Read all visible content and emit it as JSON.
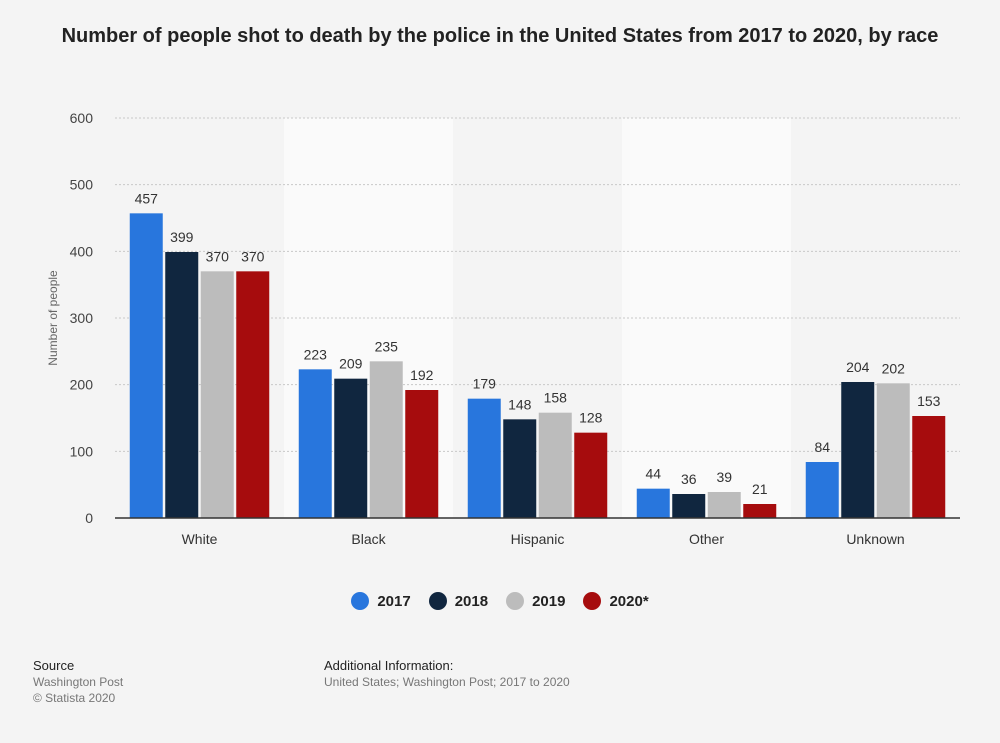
{
  "title": "Number of people shot to death by the police in the United States from 2017 to 2020, by race",
  "colors": {
    "2017": "#2876dd",
    "2018": "#10263f",
    "2019": "#bcbcbc",
    "2020": "#a60c0d"
  },
  "chart_data": {
    "type": "bar",
    "title": "Number of people shot to death by the police in the United States from 2017 to 2020, by race",
    "xlabel": "",
    "ylabel": "Number of people",
    "ylim": [
      0,
      600
    ],
    "yticks": [
      0,
      100,
      200,
      300,
      400,
      500,
      600
    ],
    "grid": true,
    "legend_position": "bottom-center",
    "categories": [
      "White",
      "Black",
      "Hispanic",
      "Other",
      "Unknown"
    ],
    "series": [
      {
        "name": "2017",
        "values": [
          457,
          223,
          179,
          44,
          84
        ]
      },
      {
        "name": "2018",
        "values": [
          399,
          209,
          148,
          36,
          204
        ]
      },
      {
        "name": "2019",
        "values": [
          370,
          235,
          158,
          39,
          202
        ]
      },
      {
        "name": "2020*",
        "values": [
          370,
          192,
          128,
          21,
          153
        ]
      }
    ]
  },
  "footer": {
    "source_heading": "Source",
    "source_lines": [
      "Washington Post",
      "© Statista 2020"
    ],
    "info_heading": "Additional Information:",
    "info_text": "United States; Washington Post; 2017 to 2020"
  }
}
